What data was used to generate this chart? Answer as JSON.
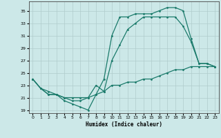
{
  "xlabel": "Humidex (Indice chaleur)",
  "background_color": "#cce8e8",
  "grid_color": "#b0cccc",
  "line_color": "#1a7a6a",
  "xlim": [
    -0.5,
    23.5
  ],
  "ylim": [
    18.5,
    36.5
  ],
  "xticks": [
    0,
    1,
    2,
    3,
    4,
    5,
    6,
    7,
    8,
    9,
    10,
    11,
    12,
    13,
    14,
    15,
    16,
    17,
    18,
    19,
    20,
    21,
    22,
    23
  ],
  "yticks": [
    19,
    21,
    23,
    25,
    27,
    29,
    31,
    33,
    35
  ],
  "line1_x": [
    0,
    1,
    2,
    3,
    4,
    5,
    6,
    7,
    8,
    9,
    10,
    11,
    12,
    13,
    14,
    15,
    16,
    17,
    18,
    19,
    20,
    21,
    22,
    23
  ],
  "line1_y": [
    24,
    22.5,
    22,
    21.5,
    21,
    21,
    21,
    21,
    21.5,
    22,
    23,
    23,
    23.5,
    23.5,
    24,
    24,
    24.5,
    25,
    25.5,
    25.5,
    26,
    26,
    26,
    26
  ],
  "line2_x": [
    0,
    1,
    2,
    3,
    4,
    5,
    6,
    7,
    8,
    9,
    10,
    11,
    12,
    13,
    14,
    15,
    16,
    17,
    18,
    19,
    20,
    21,
    22,
    23
  ],
  "line2_y": [
    24,
    22.5,
    21.5,
    21.5,
    20.5,
    20,
    19.5,
    19,
    21.5,
    24,
    31,
    34,
    34,
    34.5,
    34.5,
    34.5,
    35,
    35.5,
    35.5,
    35,
    30.5,
    26.5,
    26.5,
    26
  ],
  "line3_x": [
    0,
    1,
    2,
    3,
    4,
    5,
    6,
    7,
    8,
    9,
    10,
    11,
    12,
    13,
    14,
    15,
    16,
    17,
    18,
    19,
    20,
    21,
    22,
    23
  ],
  "line3_y": [
    24,
    22.5,
    21.5,
    21.5,
    21,
    20.5,
    20.5,
    21,
    23,
    22,
    27,
    29.5,
    32,
    33,
    34,
    34,
    34,
    34,
    34,
    32.5,
    30,
    26.5,
    26.5,
    26
  ]
}
